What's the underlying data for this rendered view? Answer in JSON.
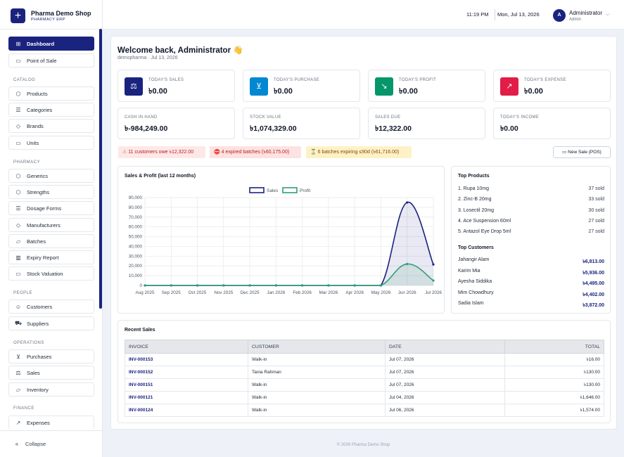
{
  "brand": {
    "name": "Pharma Demo Shop",
    "subtitle": "PHARMACY ERP",
    "logo_icon": "plus-icon"
  },
  "topbar": {
    "time": "11:19 PM",
    "date": "Mon, Jul 13, 2026",
    "avatar_initial": "A",
    "user_name": "Administrator",
    "user_role": "Admin"
  },
  "sidebar": {
    "items": [
      {
        "label": "Dashboard",
        "icon": "grid-icon",
        "active": true
      },
      {
        "label": "Point of Sale",
        "icon": "monitor-icon"
      }
    ],
    "sections": [
      {
        "title": "CATALOG",
        "items": [
          {
            "label": "Products",
            "icon": "box-icon"
          },
          {
            "label": "Categories",
            "icon": "list-icon"
          },
          {
            "label": "Brands",
            "icon": "tag-icon"
          },
          {
            "label": "Units",
            "icon": "display-icon"
          }
        ]
      },
      {
        "title": "PHARMACY",
        "items": [
          {
            "label": "Generics",
            "icon": "box-icon"
          },
          {
            "label": "Strengths",
            "icon": "box-icon"
          },
          {
            "label": "Dosage Forms",
            "icon": "list-icon"
          },
          {
            "label": "Manufacturers",
            "icon": "tag-icon"
          },
          {
            "label": "Batches",
            "icon": "folder-icon"
          },
          {
            "label": "Expiry Report",
            "icon": "chart-icon"
          },
          {
            "label": "Stock Valuation",
            "icon": "display-icon"
          }
        ]
      },
      {
        "title": "PEOPLE",
        "items": [
          {
            "label": "Customers",
            "icon": "users-icon"
          },
          {
            "label": "Suppliers",
            "icon": "truck-icon"
          }
        ]
      },
      {
        "title": "OPERATIONS",
        "items": [
          {
            "label": "Purchases",
            "icon": "cart-icon"
          },
          {
            "label": "Sales",
            "icon": "scale-icon"
          },
          {
            "label": "Inventory",
            "icon": "folder-icon"
          }
        ]
      },
      {
        "title": "FINANCE",
        "items": [
          {
            "label": "Expenses",
            "icon": "trend-icon"
          }
        ]
      }
    ],
    "collapse_label": "Collapse"
  },
  "welcome": {
    "title": "Welcome back, Administrator 👋",
    "subtitle": "demopharma · Jul 13, 2026"
  },
  "stat_cards": [
    {
      "label": "TODAY'S SALES",
      "value": "৳0.00",
      "icon": "scale-icon",
      "color": "#1a237e"
    },
    {
      "label": "TODAY'S PURCHASE",
      "value": "৳0.00",
      "icon": "cart-icon",
      "color": "#0288d1"
    },
    {
      "label": "TODAY'S PROFIT",
      "value": "৳0.00",
      "icon": "trend-down-icon",
      "color": "#059669"
    },
    {
      "label": "TODAY'S EXPENSE",
      "value": "৳0.00",
      "icon": "trend-up-icon",
      "color": "#e11d48"
    }
  ],
  "summary_cards": [
    {
      "label": "CASH IN HAND",
      "value": "৳-984,249.00"
    },
    {
      "label": "STOCK VALUE",
      "value": "৳1,074,329.00"
    },
    {
      "label": "SALES DUE",
      "value": "৳12,322.00"
    },
    {
      "label": "TODAY'S INCOME",
      "value": "৳0.00"
    }
  ],
  "alerts": [
    {
      "text": "11 customers owe ৳12,322.00",
      "icon": "warning-icon",
      "bg": "#fde8e8",
      "color": "#b91c1c"
    },
    {
      "text": "4 expired batches (৳60,175.00)",
      "icon": "stop-icon",
      "bg": "#fde2e2",
      "color": "#b91c1c"
    },
    {
      "text": "6 batches expiring ≤90d (৳61,716.00)",
      "icon": "hourglass-icon",
      "bg": "#fdf2c5",
      "color": "#92400e"
    }
  ],
  "new_sale_button": "New Sale (POS)",
  "chart_data": {
    "type": "line",
    "title": "Sales & Profit (last 12 months)",
    "categories": [
      "Aug 2025",
      "Sep 2025",
      "Oct 2025",
      "Nov 2025",
      "Dec 2025",
      "Jan 2026",
      "Feb 2026",
      "Mar 2026",
      "Apr 2026",
      "May 2026",
      "Jun 2026",
      "Jul 2026"
    ],
    "series": [
      {
        "name": "Sales",
        "values": [
          0,
          0,
          0,
          0,
          0,
          0,
          0,
          0,
          0,
          0,
          85000,
          21500
        ],
        "color": "#1a237e",
        "fill": "rgba(26,35,126,0.10)"
      },
      {
        "name": "Profit",
        "values": [
          0,
          0,
          0,
          0,
          0,
          0,
          0,
          0,
          0,
          0,
          22000,
          5000
        ],
        "color": "#2e9e77",
        "fill": "rgba(46,158,119,0.12)"
      }
    ],
    "yticks": [
      "0",
      "10,000",
      "20,000",
      "30,000",
      "40,000",
      "50,000",
      "60,000",
      "70,000",
      "80,000",
      "90,000"
    ],
    "ylim": [
      0,
      90000
    ],
    "grid": true,
    "legend": "top-center"
  },
  "top_products": {
    "title": "Top Products",
    "items": [
      {
        "name": "1. Rupa 10mg",
        "sold": "37 sold"
      },
      {
        "name": "2. Zinc-B 20mg",
        "sold": "33 sold"
      },
      {
        "name": "3. Losectil 20mg",
        "sold": "30 sold"
      },
      {
        "name": "4. Ace Suspension 60ml",
        "sold": "27 sold"
      },
      {
        "name": "5. Antazol Eye Drop 5ml",
        "sold": "27 sold"
      }
    ]
  },
  "top_customers": {
    "title": "Top Customers",
    "items": [
      {
        "name": "Jahangir Alam",
        "amount": "৳6,813.00"
      },
      {
        "name": "Karim Mia",
        "amount": "৳5,936.00"
      },
      {
        "name": "Ayesha Siddika",
        "amount": "৳4,495.00"
      },
      {
        "name": "Mim Chowdhury",
        "amount": "৳4,402.00"
      },
      {
        "name": "Sadia Islam",
        "amount": "৳3,872.00"
      }
    ]
  },
  "recent_sales": {
    "title": "Recent Sales",
    "columns": [
      "INVOICE",
      "CUSTOMER",
      "DATE",
      "TOTAL"
    ],
    "rows": [
      [
        "INV-000153",
        "Walk-in",
        "Jul 07, 2026",
        "৳16.00"
      ],
      [
        "INV-000152",
        "Tania Rahman",
        "Jul 07, 2026",
        "৳130.00"
      ],
      [
        "INV-000151",
        "Walk-in",
        "Jul 07, 2026",
        "৳130.00"
      ],
      [
        "INV-000121",
        "Walk-in",
        "Jul 04, 2026",
        "৳1,646.00"
      ],
      [
        "INV-000124",
        "Walk-in",
        "Jul 06, 2026",
        "৳1,574.00"
      ]
    ]
  },
  "footer": "© 2026 Pharma Demo Shop"
}
